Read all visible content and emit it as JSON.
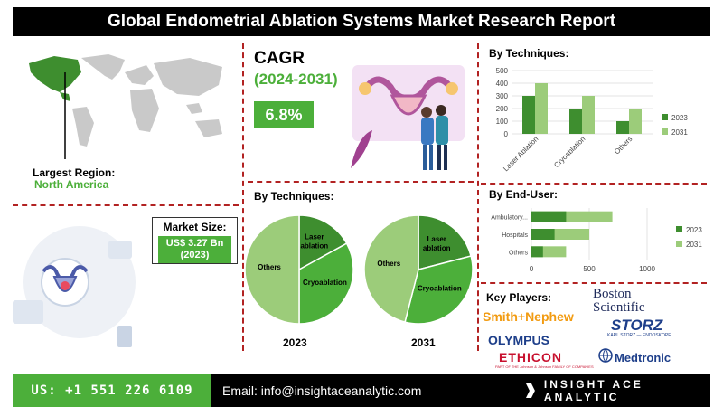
{
  "title": "Global Endometrial Ablation Systems Market Research Report",
  "region": {
    "label": "Largest Region:",
    "value": "North America"
  },
  "market_size": {
    "label": "Market Size:",
    "value_line1": "US$ 3.27 Bn",
    "value_line2": "(2023)"
  },
  "cagr": {
    "label": "CAGR",
    "period": "(2024-2031)",
    "value": "6.8%"
  },
  "techniques_pie": {
    "heading": "By Techniques:",
    "year_a": "2023",
    "year_b": "2031"
  },
  "key_players": {
    "heading": "Key Players:",
    "logos": [
      "Smith+Nephew",
      "Boston Scientific",
      "STORZ",
      "OLYMPUS",
      "ETHICON",
      "Medtronic"
    ],
    "storz_sub": "KARL STORZ — ENDOSKOPE",
    "ethicon_sub": "PART OF THE Johnson & Johnson FAMILY OF COMPANIES"
  },
  "footer": {
    "phone": "US: +1 551 226 6109",
    "email": "Email: info@insightaceanalytic.com",
    "brand": "INSIGHT ACE ANALYTIC"
  },
  "colors": {
    "dark_green": "#3e8e2f",
    "light_green": "#9ccc7a",
    "accent_green": "#4caf3a",
    "divider": "#b22222"
  },
  "chart_data": [
    {
      "type": "bar",
      "title": "By Techniques:",
      "categories": [
        "Laser Ablation",
        "Cryoablation",
        "Others"
      ],
      "series": [
        {
          "name": "2023",
          "values": [
            300,
            200,
            100
          ],
          "color": "#3e8e2f"
        },
        {
          "name": "2031",
          "values": [
            400,
            300,
            200
          ],
          "color": "#9ccc7a"
        }
      ],
      "ylim": [
        0,
        500
      ],
      "yticks": [
        0,
        100,
        200,
        300,
        400,
        500
      ],
      "legend": "right"
    },
    {
      "type": "bar",
      "orientation": "horizontal",
      "title": "By End-User:",
      "categories": [
        "Ambulatory...",
        "Hospitals",
        "Others"
      ],
      "series": [
        {
          "name": "2023",
          "values": [
            300,
            200,
            100
          ],
          "color": "#3e8e2f"
        },
        {
          "name": "2031",
          "values": [
            700,
            500,
            300
          ],
          "color": "#9ccc7a"
        }
      ],
      "xlim": [
        0,
        1000
      ],
      "xticks": [
        0,
        500,
        1000
      ],
      "legend": "right"
    },
    {
      "type": "pie",
      "label": "2023",
      "slices": [
        {
          "name": "Laser ablation",
          "value": 17,
          "color": "#3e8e2f"
        },
        {
          "name": "Cryoablation",
          "value": 33,
          "color": "#4caf3a"
        },
        {
          "name": "Others",
          "value": 50,
          "color": "#9ccc7a"
        }
      ]
    },
    {
      "type": "pie",
      "label": "2031",
      "slices": [
        {
          "name": "Laser ablation",
          "value": 21,
          "color": "#3e8e2f"
        },
        {
          "name": "Cryoablation",
          "value": 33,
          "color": "#4caf3a"
        },
        {
          "name": "Others",
          "value": 46,
          "color": "#9ccc7a"
        }
      ]
    }
  ]
}
